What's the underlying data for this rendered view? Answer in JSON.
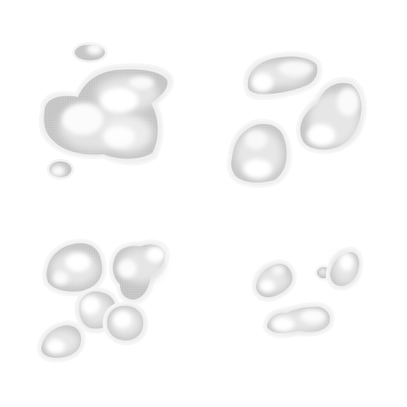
{
  "sprite_sheet": {
    "background_color": "#ffffff",
    "palette": {
      "outline": "#f4f4f4",
      "shadow": "#c7c7c7",
      "midtone": "#dcdcdc",
      "highlight": "#f7f7f7",
      "core": "#ffffff"
    },
    "sprites": [
      {
        "name": "smoke-cloud-large"
      },
      {
        "name": "smoke-cloud-split"
      },
      {
        "name": "smoke-puffs-cluster"
      },
      {
        "name": "smoke-puffs-small"
      }
    ]
  }
}
